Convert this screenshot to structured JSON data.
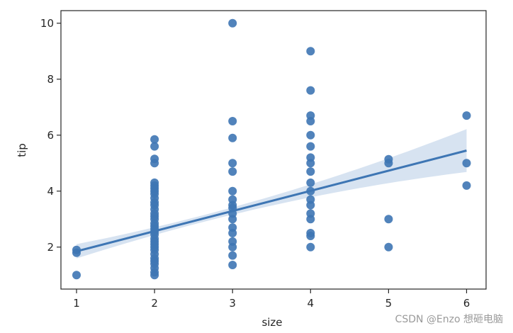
{
  "chart_data": {
    "type": "scatter",
    "xlabel": "size",
    "ylabel": "tip",
    "xlim": [
      0.8,
      6.25
    ],
    "ylim": [
      0.5,
      10.45
    ],
    "x_ticks": [
      1,
      2,
      3,
      4,
      5,
      6
    ],
    "y_ticks": [
      2,
      4,
      6,
      8,
      10
    ],
    "grid": false,
    "colors": {
      "point": "#3e76b4",
      "line": "#3e76b4",
      "band": "#c9d9ec"
    },
    "points": [
      [
        1,
        1.0
      ],
      [
        1,
        1.8
      ],
      [
        1,
        1.9
      ],
      [
        2,
        1.0
      ],
      [
        2,
        1.1
      ],
      [
        2,
        1.25
      ],
      [
        2,
        1.4
      ],
      [
        2,
        1.5
      ],
      [
        2,
        1.6
      ],
      [
        2,
        1.75
      ],
      [
        2,
        1.9
      ],
      [
        2,
        2.0
      ],
      [
        2,
        2.1
      ],
      [
        2,
        2.2
      ],
      [
        2,
        2.3
      ],
      [
        2,
        2.45
      ],
      [
        2,
        2.55
      ],
      [
        2,
        2.65
      ],
      [
        2,
        2.75
      ],
      [
        2,
        2.85
      ],
      [
        2,
        3.0
      ],
      [
        2,
        3.1
      ],
      [
        2,
        3.2
      ],
      [
        2,
        3.35
      ],
      [
        2,
        3.5
      ],
      [
        2,
        3.6
      ],
      [
        2,
        3.75
      ],
      [
        2,
        3.9
      ],
      [
        2,
        4.0
      ],
      [
        2,
        4.1
      ],
      [
        2,
        4.2
      ],
      [
        2,
        4.3
      ],
      [
        2,
        5.0
      ],
      [
        2,
        5.15
      ],
      [
        2,
        5.6
      ],
      [
        2,
        5.85
      ],
      [
        3,
        1.36
      ],
      [
        3,
        1.7
      ],
      [
        3,
        2.0
      ],
      [
        3,
        2.2
      ],
      [
        3,
        2.5
      ],
      [
        3,
        2.7
      ],
      [
        3,
        3.0
      ],
      [
        3,
        3.2
      ],
      [
        3,
        3.4
      ],
      [
        3,
        3.5
      ],
      [
        3,
        3.7
      ],
      [
        3,
        4.0
      ],
      [
        3,
        4.7
      ],
      [
        3,
        5.0
      ],
      [
        3,
        5.9
      ],
      [
        3,
        6.5
      ],
      [
        3,
        10.0
      ],
      [
        4,
        2.0
      ],
      [
        4,
        2.4
      ],
      [
        4,
        2.5
      ],
      [
        4,
        3.0
      ],
      [
        4,
        3.2
      ],
      [
        4,
        3.5
      ],
      [
        4,
        3.7
      ],
      [
        4,
        4.0
      ],
      [
        4,
        4.3
      ],
      [
        4,
        4.7
      ],
      [
        4,
        5.0
      ],
      [
        4,
        5.2
      ],
      [
        4,
        5.6
      ],
      [
        4,
        6.0
      ],
      [
        4,
        6.5
      ],
      [
        4,
        6.7
      ],
      [
        4,
        7.6
      ],
      [
        4,
        9.0
      ],
      [
        5,
        2.0
      ],
      [
        5,
        3.0
      ],
      [
        5,
        5.0
      ],
      [
        5,
        5.14
      ],
      [
        6,
        4.2
      ],
      [
        6,
        5.0
      ],
      [
        6,
        6.7
      ]
    ],
    "regression": {
      "x_range": [
        1,
        6
      ],
      "y_start": 1.85,
      "y_end": 5.45
    }
  },
  "watermark": "CSDN @Enzo 想砸电脑"
}
